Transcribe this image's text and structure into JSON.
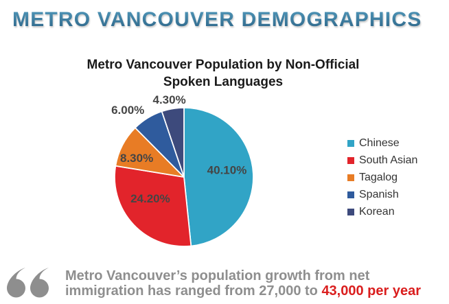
{
  "page_title": "METRO VANCOUVER DEMOGRAPHICS",
  "chart_data": {
    "type": "pie",
    "title": "Metro Vancouver Population by Non-Official Spoken Languages",
    "categories": [
      "Chinese",
      "South Asian",
      "Tagalog",
      "Spanish",
      "Korean"
    ],
    "values": [
      40.1,
      24.2,
      8.3,
      6.0,
      4.3
    ],
    "labels": [
      "40.10%",
      "24.20%",
      "8.30%",
      "6.00%",
      "4.30%"
    ],
    "colors": [
      "#31a4c6",
      "#e2242b",
      "#e87c25",
      "#2f5b9d",
      "#3d4a7c"
    ],
    "legend_position": "right",
    "start_angle_deg": 0,
    "direction": "clockwise",
    "slice_separator_color": "#ffffff",
    "label_color": "#454545"
  },
  "quote": {
    "line1": "Metro Vancouver’s population growth from net",
    "line2_prefix": "immigration has ranged from 27,000 to ",
    "highlight": "43,000 per year",
    "highlight_color": "#da1e1e",
    "text_color": "#8e8e8e"
  },
  "colors": {
    "title_gradient_top": "#529abc",
    "title_gradient_bottom": "#2b6285"
  }
}
